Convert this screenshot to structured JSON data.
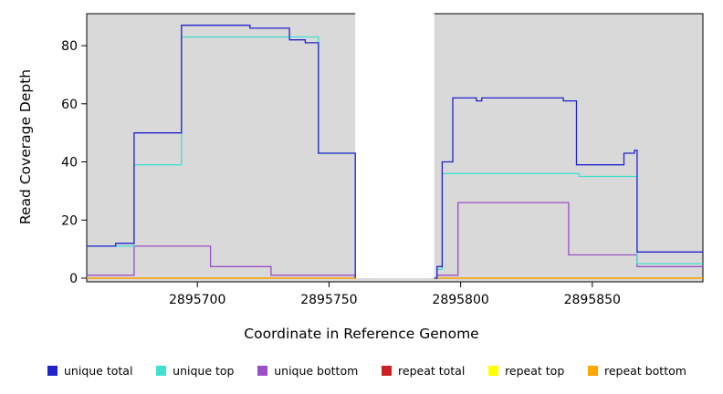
{
  "chart_data": {
    "type": "line",
    "subtype": "step",
    "title": "",
    "xlabel": "Coordinate in Reference Genome",
    "ylabel": "Read Coverage Depth",
    "xlim": [
      2895658,
      2895892
    ],
    "ylim": [
      0,
      91
    ],
    "x_ticks": [
      2895700,
      2895750,
      2895800,
      2895850
    ],
    "y_ticks": [
      0,
      20,
      40,
      60,
      80
    ],
    "background": "#D9D9D9",
    "gap_region": {
      "x0": 2895760,
      "x1": 2895790,
      "color": "#FFFFFF"
    },
    "grid": false,
    "legend_position": "bottom",
    "draw_order": [
      3,
      4,
      5,
      2,
      1,
      0
    ],
    "series": [
      {
        "id": "unique-total",
        "name": "unique total",
        "color": "#2222CC",
        "points": [
          [
            2895658,
            11
          ],
          [
            2895669,
            12
          ],
          [
            2895676,
            50
          ],
          [
            2895694,
            87
          ],
          [
            2895720,
            86
          ],
          [
            2895735,
            82
          ],
          [
            2895741,
            81
          ],
          [
            2895746,
            43
          ],
          [
            2895760,
            0
          ],
          [
            2895761,
            null
          ],
          [
            2895790,
            0
          ],
          [
            2895791,
            4
          ],
          [
            2895793,
            40
          ],
          [
            2895797,
            62
          ],
          [
            2895806,
            61
          ],
          [
            2895808,
            62
          ],
          [
            2895839,
            61
          ],
          [
            2895844,
            39
          ],
          [
            2895862,
            43
          ],
          [
            2895866,
            44
          ],
          [
            2895867,
            9
          ],
          [
            2895892,
            9
          ]
        ]
      },
      {
        "id": "unique-top",
        "name": "unique top",
        "color": "#40E0D0",
        "points": [
          [
            2895658,
            11
          ],
          [
            2895676,
            39
          ],
          [
            2895694,
            83
          ],
          [
            2895746,
            43
          ],
          [
            2895760,
            0
          ],
          [
            2895761,
            null
          ],
          [
            2895790,
            0
          ],
          [
            2895791,
            3
          ],
          [
            2895793,
            36
          ],
          [
            2895845,
            35
          ],
          [
            2895867,
            5
          ],
          [
            2895892,
            5
          ]
        ]
      },
      {
        "id": "unique-bottom",
        "name": "unique bottom",
        "color": "#9B4FC8",
        "points": [
          [
            2895658,
            1
          ],
          [
            2895676,
            11
          ],
          [
            2895705,
            4
          ],
          [
            2895728,
            1
          ],
          [
            2895760,
            0
          ],
          [
            2895761,
            null
          ],
          [
            2895790,
            0
          ],
          [
            2895791,
            1
          ],
          [
            2895799,
            26
          ],
          [
            2895841,
            8
          ],
          [
            2895867,
            4
          ],
          [
            2895892,
            4
          ]
        ]
      },
      {
        "id": "repeat-total",
        "name": "repeat total",
        "color": "#CC2222",
        "points": [
          [
            2895658,
            0
          ],
          [
            2895760,
            0
          ],
          [
            2895761,
            null
          ],
          [
            2895790,
            0
          ],
          [
            2895892,
            0
          ]
        ]
      },
      {
        "id": "repeat-top",
        "name": "repeat top",
        "color": "#FFFF00",
        "points": [
          [
            2895658,
            0
          ],
          [
            2895760,
            0
          ],
          [
            2895761,
            null
          ],
          [
            2895790,
            0
          ],
          [
            2895892,
            0
          ]
        ]
      },
      {
        "id": "repeat-bottom",
        "name": "repeat bottom",
        "color": "#FFA500",
        "points": [
          [
            2895658,
            0
          ],
          [
            2895760,
            0
          ],
          [
            2895761,
            null
          ],
          [
            2895790,
            0
          ],
          [
            2895892,
            0
          ]
        ]
      }
    ]
  }
}
